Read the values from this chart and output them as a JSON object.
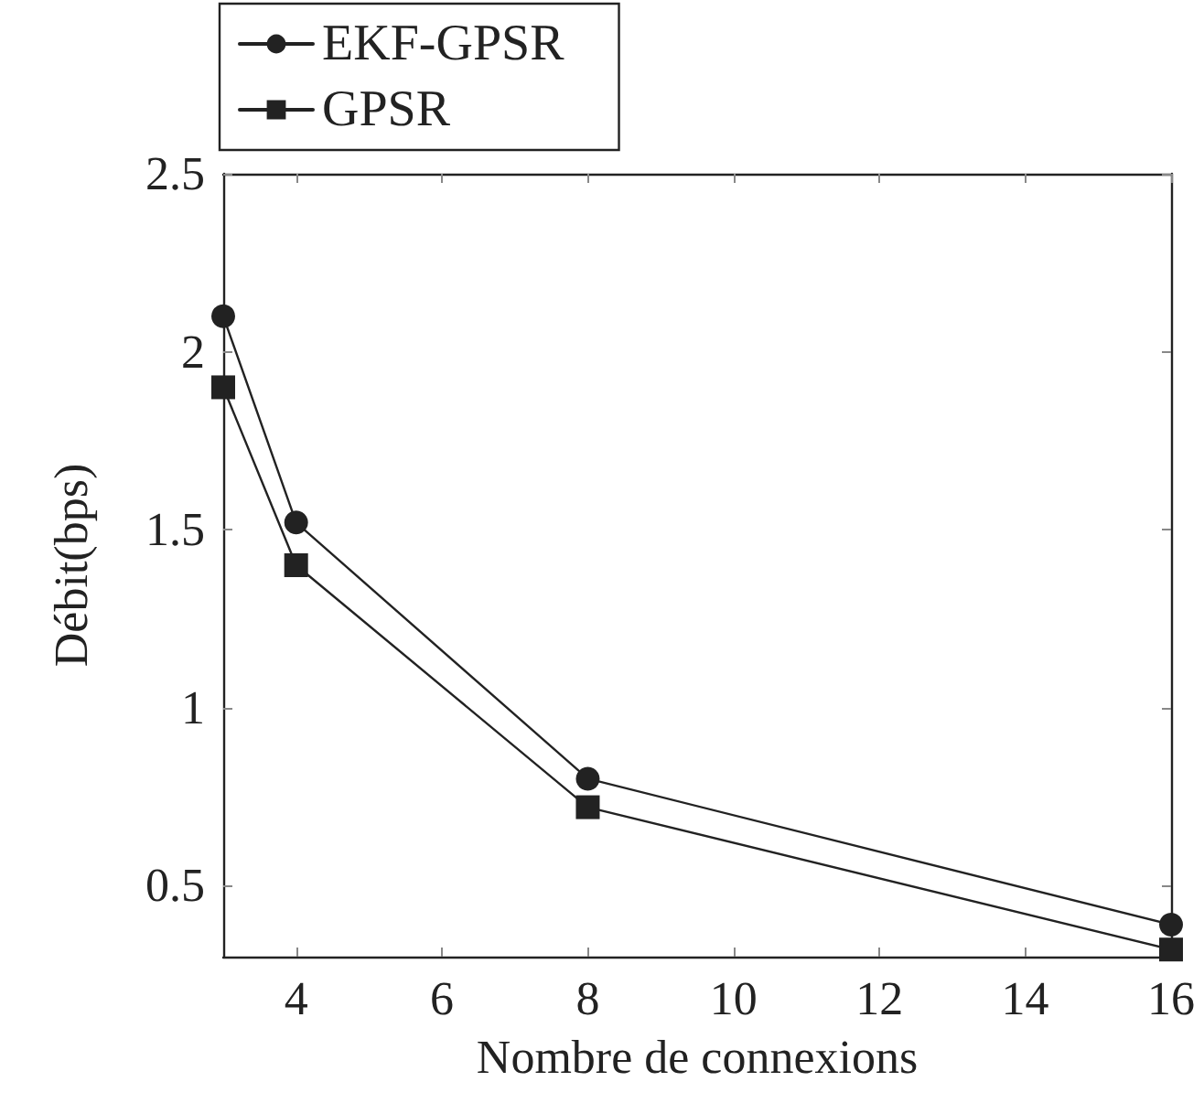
{
  "chart_data": {
    "type": "line",
    "xlabel": "Nombre de connexions",
    "ylabel": "Débit(bps)",
    "x": [
      3,
      4,
      8,
      16
    ],
    "series": [
      {
        "name": "EKF-GPSR",
        "color": "#222222",
        "marker": "circle",
        "values": [
          2.1,
          1.52,
          0.8,
          0.39
        ]
      },
      {
        "name": "GPSR",
        "color": "#222222",
        "marker": "square",
        "values": [
          1.9,
          1.4,
          0.72,
          0.32
        ]
      }
    ],
    "xlim": [
      3,
      16
    ],
    "xticks": [
      4,
      6,
      8,
      10,
      12,
      14,
      16
    ],
    "ylim": [
      0.3,
      2.5
    ],
    "yticks": [
      0.5,
      1,
      1.5,
      2,
      2.5
    ],
    "grid": false,
    "legend": "top left",
    "line_style": "solid"
  }
}
